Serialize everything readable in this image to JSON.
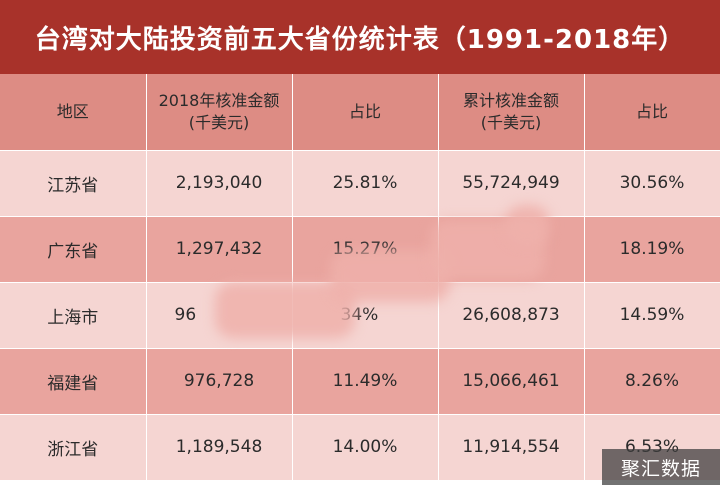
{
  "title": "台湾对大陆投资前五大省份统计表（1991-2018年）",
  "headers": {
    "region": "地区",
    "amount_2018_line1": "2018年核准金额",
    "amount_2018_line2": "(千美元)",
    "share_2018": "占比",
    "cumulative_line1": "累计核准金额",
    "cumulative_line2": "(千美元)",
    "share_cumulative": "占比"
  },
  "rows": [
    {
      "region": "江苏省",
      "amount_2018": "2,193,040",
      "share_2018": "25.81%",
      "cumulative": "55,724,949",
      "share_cumulative": "30.56%"
    },
    {
      "region": "广东省",
      "amount_2018": "1,297,432",
      "share_2018": "15.27%",
      "cumulative": "",
      "share_cumulative": "18.19%"
    },
    {
      "region": "上海市",
      "amount_2018": "96",
      "share_2018": "34%",
      "cumulative": "26,608,873",
      "share_cumulative": "14.59%"
    },
    {
      "region": "福建省",
      "amount_2018": "976,728",
      "share_2018": "11.49%",
      "cumulative": "15,066,461",
      "share_cumulative": "8.26%"
    },
    {
      "region": "浙江省",
      "amount_2018": "1,189,548",
      "share_2018": "14.00%",
      "cumulative": "11,914,554",
      "share_cumulative": "6.53%"
    }
  ],
  "watermark": "聚汇数据"
}
